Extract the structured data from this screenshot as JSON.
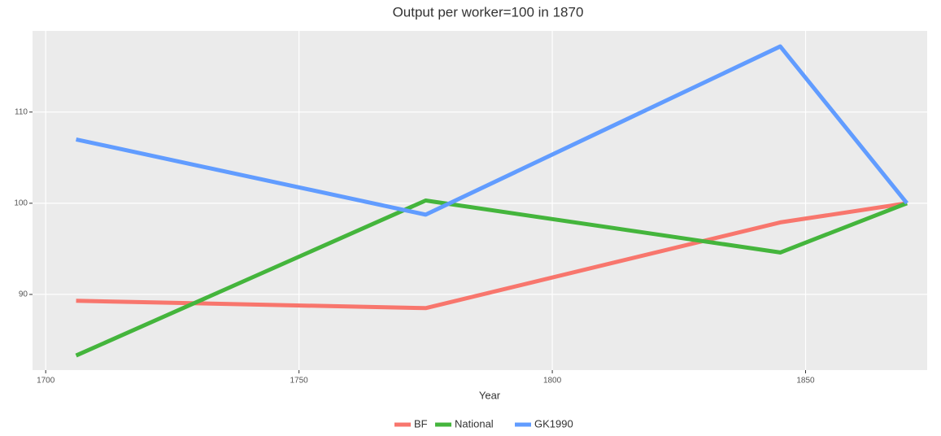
{
  "chart_data": {
    "type": "line",
    "title": "Output per worker=100 in 1870",
    "x_label": "Year",
    "x": [
      1706,
      1775,
      1845,
      1870
    ],
    "series": [
      {
        "name": "BF",
        "color": "#f8766d",
        "values": [
          89.3,
          88.5,
          97.9,
          100
        ]
      },
      {
        "name": "National",
        "color": "#44b53c",
        "values": [
          83.3,
          100.3,
          94.6,
          100
        ]
      },
      {
        "name": "GK1990",
        "color": "#619cff",
        "values": [
          107.0,
          98.75,
          117.2,
          100
        ]
      }
    ],
    "xlim": [
      1697.4,
      1874
    ],
    "xticks": [
      1700,
      1750,
      1800,
      1850
    ],
    "ylim": [
      81.7,
      118.9
    ],
    "yticks": [
      90,
      100,
      110
    ],
    "grid": true,
    "legend": "bottom"
  }
}
